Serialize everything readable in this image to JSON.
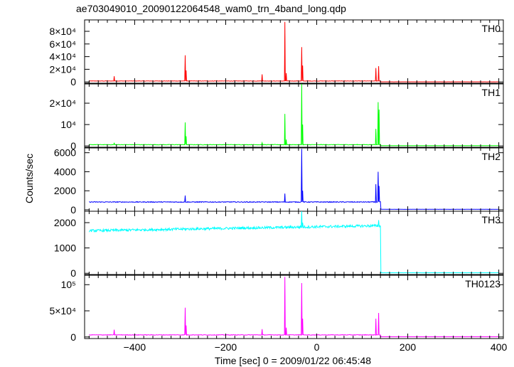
{
  "chart_data": {
    "type": "line",
    "title": "ae703049010_20090122064548_wam0_trn_4band_long.qdp",
    "xlabel": "Time [sec] 0 = 2009/01/22 06:45:48",
    "ylabel": "Counts/sec",
    "xlim": [
      -510,
      410
    ],
    "x_ticks": [
      "−400",
      "−200",
      "0",
      "200",
      "400"
    ],
    "x_tick_values": [
      -400,
      -200,
      0,
      200,
      400
    ],
    "colors": {
      "TH0": "#ff0000",
      "TH1": "#00ff00",
      "TH2": "#0000ff",
      "TH3": "#00ffff",
      "TH0123": "#ff00ff",
      "axes": "#000000"
    },
    "panels": [
      {
        "name": "TH0",
        "ylim": [
          -2000,
          98000
        ],
        "y_ticks": [
          {
            "value": 0,
            "label": "0"
          },
          {
            "value": 20000,
            "label": "2×10⁴"
          },
          {
            "value": 40000,
            "label": "4×10⁴"
          },
          {
            "value": 60000,
            "label": "6×10⁴"
          },
          {
            "value": 80000,
            "label": "8×10⁴"
          }
        ],
        "baseline": 1500,
        "noise": 300,
        "post_level": 200,
        "spikes": [
          [
            -445,
            9000
          ],
          [
            -289,
            42000
          ],
          [
            -287,
            18000
          ],
          [
            -120,
            12000
          ],
          [
            -70,
            95000
          ],
          [
            -67,
            14000
          ],
          [
            -33,
            55000
          ],
          [
            -31,
            26000
          ],
          [
            130,
            22000
          ],
          [
            136,
            25000
          ]
        ]
      },
      {
        "name": "TH1",
        "ylim": [
          -600,
          29000
        ],
        "y_ticks": [
          {
            "value": 0,
            "label": "0"
          },
          {
            "value": 10000,
            "label": "10⁴"
          },
          {
            "value": 20000,
            "label": "2×10⁴"
          }
        ],
        "baseline": 600,
        "noise": 120,
        "post_level": 150,
        "spikes": [
          [
            -445,
            1500
          ],
          [
            -289,
            11000
          ],
          [
            -287,
            4500
          ],
          [
            -120,
            1500
          ],
          [
            -70,
            15000
          ],
          [
            -67,
            3000
          ],
          [
            -33,
            29000
          ],
          [
            -31,
            10000
          ],
          [
            130,
            8000
          ],
          [
            135,
            20500
          ],
          [
            137,
            17000
          ]
        ]
      },
      {
        "name": "TH2",
        "ylim": [
          -150,
          6500
        ],
        "y_ticks": [
          {
            "value": 0,
            "label": "0"
          },
          {
            "value": 2000,
            "label": "2000"
          },
          {
            "value": 4000,
            "label": "4000"
          },
          {
            "value": 6000,
            "label": "6000"
          }
        ],
        "baseline": 820,
        "noise": 40,
        "post_level": 50,
        "spikes": [
          [
            -289,
            1500
          ],
          [
            -70,
            1700
          ],
          [
            -33,
            6400
          ],
          [
            -31,
            2000
          ],
          [
            130,
            2700
          ],
          [
            135,
            4000
          ],
          [
            137,
            2500
          ]
        ]
      },
      {
        "name": "TH3",
        "ylim": [
          -50,
          2450
        ],
        "y_ticks": [
          {
            "value": 0,
            "label": "0"
          },
          {
            "value": 1000,
            "label": "1000"
          },
          {
            "value": 2000,
            "label": "2000"
          }
        ],
        "baseline_start": 1680,
        "baseline_end": 1880,
        "noise": 50,
        "post_level": 20,
        "spikes": [
          [
            -33,
            2450
          ],
          [
            -31,
            2000
          ],
          [
            136,
            2100
          ]
        ]
      },
      {
        "name": "TH0123",
        "ylim": [
          -3000,
          118000
        ],
        "y_ticks": [
          {
            "value": 0,
            "label": "0"
          },
          {
            "value": 50000,
            "label": "5×10⁴"
          },
          {
            "value": 100000,
            "label": "10⁵"
          }
        ],
        "baseline": 4000,
        "noise": 500,
        "post_level": 400,
        "spikes": [
          [
            -445,
            14000
          ],
          [
            -289,
            56000
          ],
          [
            -287,
            22000
          ],
          [
            -120,
            15000
          ],
          [
            -70,
            115000
          ],
          [
            -67,
            18000
          ],
          [
            -33,
            103000
          ],
          [
            -31,
            35000
          ],
          [
            130,
            35000
          ],
          [
            136,
            46000
          ]
        ]
      }
    ]
  }
}
